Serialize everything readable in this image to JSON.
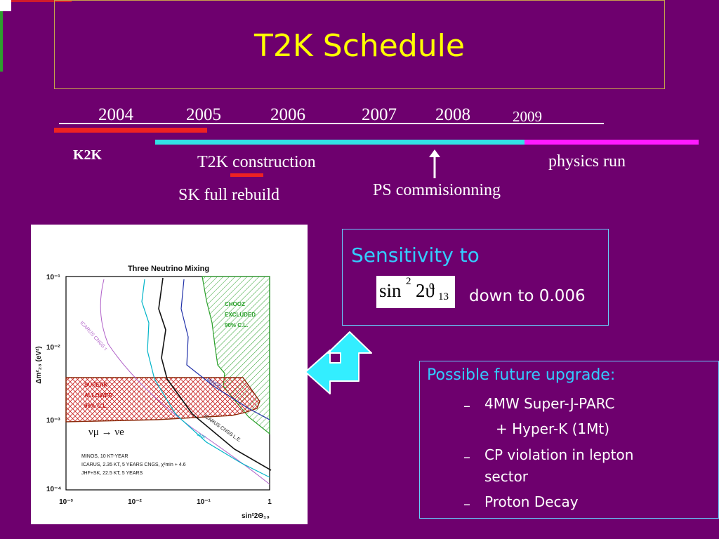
{
  "title": "T2K Schedule",
  "timeline": {
    "years": [
      "2004",
      "2005",
      "2006",
      "2007",
      "2008",
      "2009"
    ],
    "labels": {
      "k2k": "K2K",
      "construction": "T2K construction",
      "sk_rebuild": "SK full rebuild",
      "ps": "PS commisionning",
      "physics": "physics run"
    }
  },
  "plot": {
    "title": "Three Neutrino Mixing",
    "y_axis_label": "Δm²₂₃ (eV²)",
    "x_axis_label": "sin²2Θ₁₃",
    "y_ticks": [
      "10⁻¹",
      "10⁻²",
      "10⁻³",
      "10⁻⁴"
    ],
    "x_ticks": [
      "10⁻³",
      "10⁻²",
      "10⁻¹",
      "1"
    ],
    "chooz_label": [
      "CHOOZ",
      "EXCLUDED",
      "90% C.L."
    ],
    "superk_label": [
      "SUPERK",
      "ALLOWED",
      "90% C.L."
    ],
    "icarus_tau": "ICARUS CNGS τ",
    "icarus_le": "ICARUS CNGS L.E.",
    "minos": "MINOS",
    "jhf": "JHF",
    "nu_label": "νμ → νe",
    "legend": [
      "MINOS, 10 KT-YEAR",
      "ICARUS, 2.35 KT, 5 YEARS CNGS, χ²min + 4.6",
      "JHF+SK, 22.5 KT, 5 YEARS"
    ]
  },
  "sensitivity": {
    "title": "Sensitivity to",
    "formula_main": "sin",
    "formula_exp": "2",
    "formula_mid": "2ϑ",
    "formula_sub": "13",
    "down_to": "down to 0.006"
  },
  "future": {
    "title": "Possible future upgrade:",
    "items": [
      "4MW Super-J-PARC",
      "+ Hyper-K (1Mt)",
      "CP violation in lepton",
      "sector",
      "Proton Decay"
    ],
    "dash": "–"
  }
}
